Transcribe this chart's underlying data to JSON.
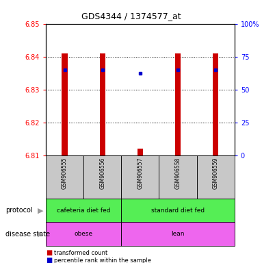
{
  "title": "GDS4344 / 1374577_at",
  "samples": [
    "GSM906555",
    "GSM906556",
    "GSM906557",
    "GSM906558",
    "GSM906559"
  ],
  "bar_values": [
    6.841,
    6.841,
    6.812,
    6.841,
    6.841
  ],
  "bar_base": 6.81,
  "percentile_values": [
    6.836,
    6.836,
    6.835,
    6.836,
    6.836
  ],
  "ylim": [
    6.81,
    6.85
  ],
  "y2lim": [
    0,
    100
  ],
  "yticks": [
    6.81,
    6.82,
    6.83,
    6.84,
    6.85
  ],
  "y2ticks": [
    0,
    25,
    50,
    75,
    100
  ],
  "bar_color": "#cc0000",
  "percentile_color": "#0000cc",
  "protocol_labels": [
    "cafeteria diet fed",
    "standard diet fed"
  ],
  "protocol_color": "#55ee55",
  "disease_labels": [
    "obese",
    "lean"
  ],
  "disease_color": "#ee66ee",
  "sample_bg_color": "#c8c8c8",
  "legend_red_label": "transformed count",
  "legend_blue_label": "percentile rank within the sample",
  "protocol_row_label": "protocol",
  "disease_row_label": "disease state",
  "grid_dotted_ticks": [
    6.82,
    6.83,
    6.84
  ],
  "n_cafeteria": 2,
  "n_standard": 3
}
